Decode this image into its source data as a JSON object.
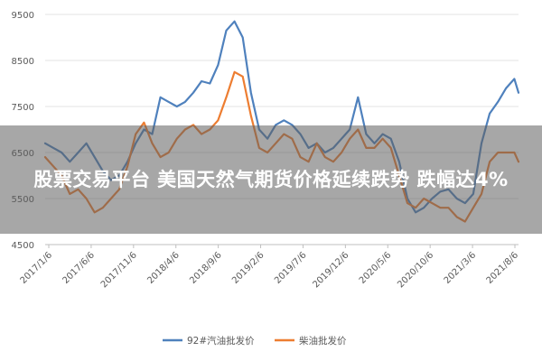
{
  "overlay": {
    "headline": "股票交易平台 美国天然气期货价格延续跌势 跌幅达4%"
  },
  "chart_data": {
    "type": "line",
    "title": "",
    "xlabel": "",
    "ylabel": "",
    "ylim": [
      4500,
      9500
    ],
    "y_ticks": [
      "4500",
      "5500",
      "6500",
      "7500",
      "8500",
      "9500"
    ],
    "x_tick_labels": [
      "2017/1/6",
      "2017/6/6",
      "2017/11/6",
      "2018/4/6",
      "2018/9/6",
      "2019/2/6",
      "2019/7/6",
      "2019/12/6",
      "2020/5/6",
      "2020/10/6",
      "2021/3/6",
      "2021/8/6"
    ],
    "x_range": [
      0,
      115
    ],
    "grid": "horizontal",
    "legend_position": "bottom",
    "series": [
      {
        "name": "92#汽油批发价",
        "color": "#4f81bd",
        "x": [
          0,
          2,
          4,
          6,
          8,
          10,
          12,
          14,
          16,
          18,
          20,
          22,
          24,
          26,
          28,
          30,
          32,
          34,
          36,
          38,
          40,
          42,
          44,
          46,
          48,
          50,
          52,
          54,
          56,
          58,
          60,
          62,
          64,
          66,
          68,
          70,
          72,
          74,
          76,
          78,
          80,
          82,
          84,
          86,
          88,
          90,
          92,
          94,
          96,
          98,
          100,
          102,
          104,
          106,
          108,
          110,
          112,
          114,
          115
        ],
        "y": [
          6700,
          6600,
          6500,
          6300,
          6500,
          6700,
          6400,
          6100,
          5900,
          6000,
          6300,
          6700,
          7000,
          6900,
          7700,
          7600,
          7500,
          7600,
          7800,
          8050,
          8000,
          8400,
          9150,
          9350,
          9000,
          7800,
          7000,
          6800,
          7100,
          7200,
          7100,
          6900,
          6600,
          6700,
          6500,
          6600,
          6800,
          7000,
          7700,
          6900,
          6700,
          6900,
          6800,
          6300,
          5500,
          5200,
          5300,
          5500,
          5650,
          5700,
          5500,
          5400,
          5600,
          6700,
          7350,
          7600,
          7900,
          8100,
          7800
        ]
      },
      {
        "name": "柴油批发价",
        "color": "#ed7d31",
        "x": [
          0,
          2,
          4,
          6,
          8,
          10,
          12,
          14,
          16,
          18,
          20,
          22,
          24,
          26,
          28,
          30,
          32,
          34,
          36,
          38,
          40,
          42,
          44,
          46,
          48,
          50,
          52,
          54,
          56,
          58,
          60,
          62,
          64,
          66,
          68,
          70,
          72,
          74,
          76,
          78,
          80,
          82,
          84,
          86,
          88,
          90,
          92,
          94,
          96,
          98,
          100,
          102,
          104,
          106,
          108,
          110,
          112,
          114,
          115
        ],
        "y": [
          6400,
          6200,
          6000,
          5600,
          5700,
          5500,
          5200,
          5300,
          5500,
          5700,
          6200,
          6900,
          7150,
          6700,
          6400,
          6500,
          6800,
          7000,
          7100,
          6900,
          7000,
          7200,
          7700,
          8250,
          8150,
          7300,
          6600,
          6500,
          6700,
          6900,
          6800,
          6400,
          6300,
          6700,
          6400,
          6300,
          6500,
          6800,
          7000,
          6600,
          6600,
          6800,
          6600,
          6000,
          5400,
          5300,
          5500,
          5400,
          5300,
          5300,
          5100,
          5000,
          5300,
          5600,
          6300,
          6500,
          6500,
          6500,
          6300
        ]
      }
    ]
  }
}
